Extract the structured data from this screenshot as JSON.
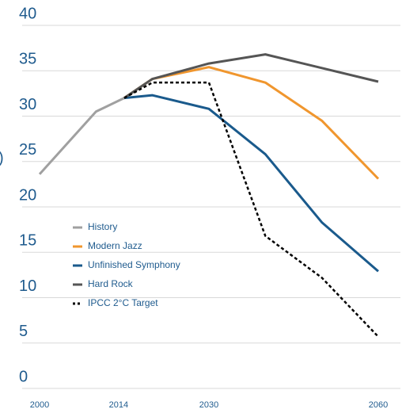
{
  "chart_data": {
    "type": "line",
    "ylabel": ")",
    "x": [
      2000,
      2010,
      2015,
      2020,
      2030,
      2040,
      2050,
      2060
    ],
    "xlim": [
      2000,
      2060
    ],
    "xticks": [
      2000,
      2014,
      2030,
      2060
    ],
    "ylim": [
      0,
      40
    ],
    "yticks": [
      0,
      5,
      10,
      15,
      20,
      25,
      30,
      35,
      40
    ],
    "grid": true,
    "series": [
      {
        "name": "History",
        "color": "#a0a0a0",
        "values": [
          23.6,
          30.5,
          32,
          null,
          null,
          null,
          null,
          null
        ]
      },
      {
        "name": "Modern Jazz",
        "color": "#f0962e",
        "values": [
          null,
          null,
          32,
          34.1,
          35.4,
          33.7,
          29.5,
          23.1
        ]
      },
      {
        "name": "Unfinished Symphony",
        "color": "#1a5a8c",
        "values": [
          null,
          null,
          32,
          32.3,
          30.8,
          25.8,
          18.3,
          12.9
        ]
      },
      {
        "name": "Hard Rock",
        "color": "#555555",
        "values": [
          null,
          null,
          32,
          34.1,
          35.8,
          36.8,
          35.3,
          33.8
        ]
      },
      {
        "name": "IPCC 2°C Target",
        "color": "#000000",
        "dashed": true,
        "values": [
          null,
          null,
          32,
          33.7,
          33.7,
          16.8,
          12.2,
          5.7
        ]
      }
    ]
  }
}
